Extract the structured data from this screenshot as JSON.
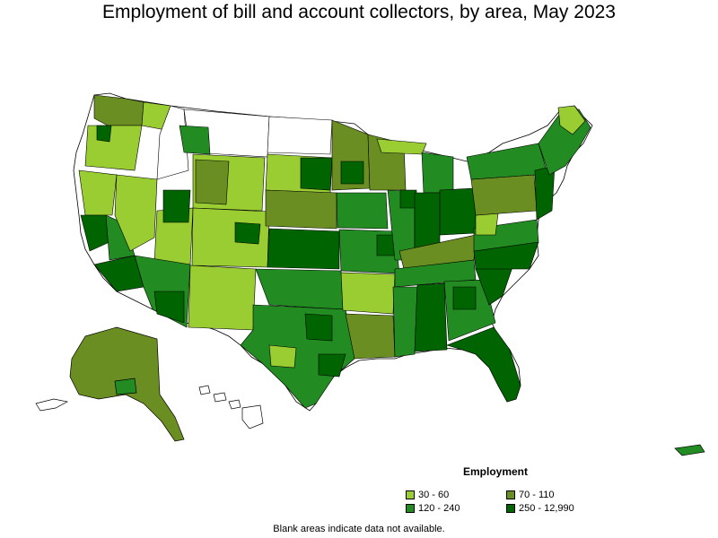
{
  "title": "Employment of bill and account collectors, by area, May 2023",
  "legend": {
    "title": "Employment",
    "items": [
      {
        "label": "30 - 60",
        "color": "#9acd32"
      },
      {
        "label": "70 - 110",
        "color": "#6b8e23"
      },
      {
        "label": "120 - 240",
        "color": "#228b22"
      },
      {
        "label": "250 - 12,990",
        "color": "#006400"
      }
    ]
  },
  "footnote": "Blank areas indicate data not available.",
  "colors": {
    "no_data": "#ffffff",
    "border": "#000000"
  }
}
